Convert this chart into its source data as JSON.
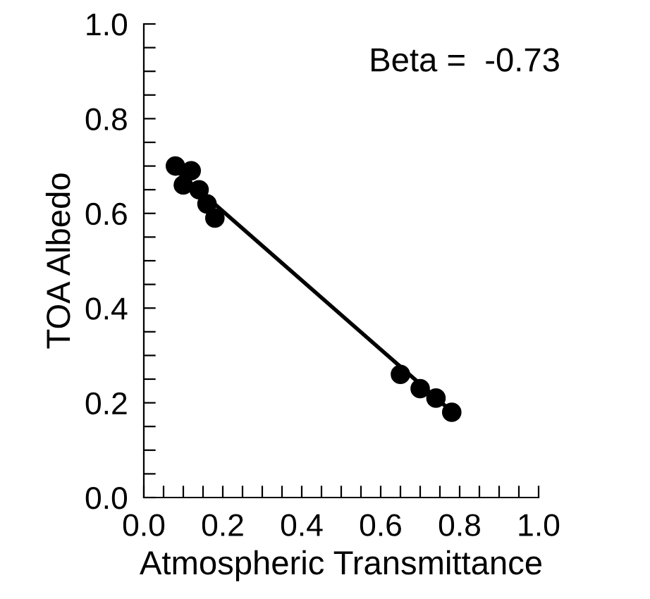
{
  "chart_data": {
    "type": "scatter",
    "xlabel": "Atmospheric Transmittance",
    "ylabel": "TOA Albedo",
    "annotations": [
      "Beta =  -0.73"
    ],
    "xlim": [
      0,
      1
    ],
    "ylim": [
      0,
      1
    ],
    "xticks": [
      {
        "value": 0.0,
        "label": "0.0"
      },
      {
        "value": 0.05,
        "label": null
      },
      {
        "value": 0.1,
        "label": null
      },
      {
        "value": 0.15,
        "label": null
      },
      {
        "value": 0.2,
        "label": "0.2"
      },
      {
        "value": 0.25,
        "label": null
      },
      {
        "value": 0.3,
        "label": null
      },
      {
        "value": 0.35,
        "label": null
      },
      {
        "value": 0.4,
        "label": "0.4"
      },
      {
        "value": 0.45,
        "label": null
      },
      {
        "value": 0.5,
        "label": null
      },
      {
        "value": 0.55,
        "label": null
      },
      {
        "value": 0.6,
        "label": "0.6"
      },
      {
        "value": 0.65,
        "label": null
      },
      {
        "value": 0.7,
        "label": null
      },
      {
        "value": 0.75,
        "label": null
      },
      {
        "value": 0.8,
        "label": "0.8"
      },
      {
        "value": 0.85,
        "label": null
      },
      {
        "value": 0.9,
        "label": null
      },
      {
        "value": 0.95,
        "label": null
      },
      {
        "value": 1.0,
        "label": "1.0"
      }
    ],
    "yticks": [
      {
        "value": 0.0,
        "label": "0.0"
      },
      {
        "value": 0.05,
        "label": null
      },
      {
        "value": 0.1,
        "label": null
      },
      {
        "value": 0.15,
        "label": null
      },
      {
        "value": 0.2,
        "label": "0.2"
      },
      {
        "value": 0.25,
        "label": null
      },
      {
        "value": 0.3,
        "label": null
      },
      {
        "value": 0.35,
        "label": null
      },
      {
        "value": 0.4,
        "label": "0.4"
      },
      {
        "value": 0.45,
        "label": null
      },
      {
        "value": 0.5,
        "label": null
      },
      {
        "value": 0.55,
        "label": null
      },
      {
        "value": 0.6,
        "label": "0.6"
      },
      {
        "value": 0.65,
        "label": null
      },
      {
        "value": 0.7,
        "label": null
      },
      {
        "value": 0.75,
        "label": null
      },
      {
        "value": 0.8,
        "label": "0.8"
      },
      {
        "value": 0.85,
        "label": null
      },
      {
        "value": 0.9,
        "label": null
      },
      {
        "value": 0.95,
        "label": null
      },
      {
        "value": 1.0,
        "label": "1.0"
      }
    ],
    "grid": false,
    "legend": false,
    "series": [
      {
        "marker": "circle",
        "color": "#000000",
        "x": [
          0.08,
          0.12,
          0.1,
          0.14,
          0.16,
          0.18
        ],
        "values": [
          0.7,
          0.69,
          0.66,
          0.65,
          0.62,
          0.59
        ]
      },
      {
        "marker": "circle",
        "color": "#000000",
        "x": [
          0.65,
          0.7,
          0.74,
          0.78
        ],
        "values": [
          0.26,
          0.23,
          0.21,
          0.18
        ]
      },
      {
        "type": "line",
        "marker": "none",
        "color": "#000000",
        "x": [
          0.09,
          0.79
        ],
        "values": [
          0.685,
          0.174
        ]
      }
    ]
  }
}
